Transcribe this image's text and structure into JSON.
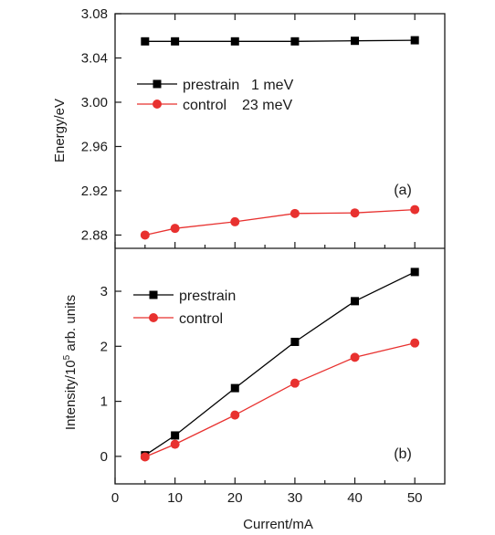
{
  "chart_data": [
    {
      "panel": "(a)",
      "type": "line",
      "title": "",
      "xlabel": "",
      "ylabel": "Energy/eV",
      "x": [
        5,
        10,
        20,
        30,
        40,
        50
      ],
      "xlim": [
        0,
        55
      ],
      "ylim": [
        2.868,
        3.08
      ],
      "yticks": [
        "2.88",
        "2.92",
        "2.96",
        "3.00",
        "3.04",
        "3.08"
      ],
      "grid": false,
      "legend_position": "upper-left",
      "series": [
        {
          "name": "prestrain",
          "legend_note": "1 meV",
          "marker": "square",
          "color": "#000000",
          "values": [
            3.055,
            3.055,
            3.055,
            3.055,
            3.0555,
            3.056
          ]
        },
        {
          "name": "control",
          "legend_note": "23 meV",
          "marker": "circle",
          "color": "#e8312f",
          "values": [
            2.88,
            2.886,
            2.892,
            2.8995,
            2.9,
            2.903
          ]
        }
      ]
    },
    {
      "panel": "(b)",
      "type": "line",
      "title": "",
      "xlabel": "Current/mA",
      "ylabel_main": "Intensity/10",
      "ylabel_sup": "5",
      "ylabel_tail": " arb. units",
      "x": [
        5,
        10,
        20,
        30,
        40,
        50
      ],
      "xlim": [
        0,
        55
      ],
      "xticks": [
        "0",
        "10",
        "20",
        "30",
        "40",
        "50"
      ],
      "ylim": [
        -0.5,
        3.78
      ],
      "yticks": [
        "0",
        "1",
        "2",
        "3"
      ],
      "grid": false,
      "legend_position": "upper-left",
      "series": [
        {
          "name": "prestrain",
          "marker": "square",
          "color": "#000000",
          "values": [
            0.02,
            0.38,
            1.24,
            2.08,
            2.82,
            3.35
          ]
        },
        {
          "name": "control",
          "marker": "circle",
          "color": "#e8312f",
          "values": [
            -0.01,
            0.22,
            0.75,
            1.33,
            1.8,
            2.06
          ]
        }
      ]
    }
  ]
}
